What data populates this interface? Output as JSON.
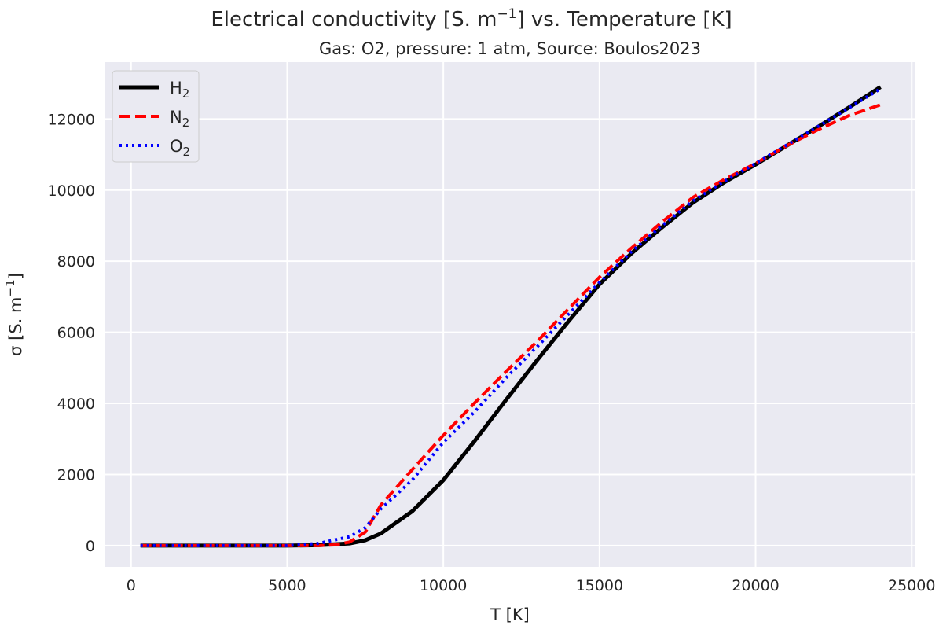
{
  "chart_data": {
    "type": "line",
    "title": "Electrical conductivity [S. m⁻¹] vs. Temperature [K]",
    "title_parts": {
      "pre": "Electrical conductivity [S. m",
      "sup": "−1",
      "post": "] vs. Temperature [K]"
    },
    "subtitle": "Gas: O2, pressure: 1 atm, Source: Boulos2023",
    "xlabel": "T [K]",
    "ylabel_parts": {
      "pre": "σ [S. m",
      "sup": "−1",
      "post": "]"
    },
    "xlim": [
      -850,
      25120
    ],
    "ylim": [
      -600,
      13600
    ],
    "xticks": [
      0,
      5000,
      10000,
      15000,
      20000,
      25000
    ],
    "yticks": [
      0,
      2000,
      4000,
      6000,
      8000,
      10000,
      12000
    ],
    "grid": true,
    "background": "#EAEAF2",
    "legend_placement": "top-left",
    "series": [
      {
        "name": "H2",
        "label_base": "H",
        "label_sub": "2",
        "color": "#000000",
        "style": "solid",
        "x": [
          300,
          5000,
          6000,
          7000,
          7500,
          8000,
          9000,
          10000,
          11000,
          12000,
          13000,
          14000,
          15000,
          16000,
          17000,
          18000,
          19000,
          20000,
          21000,
          22000,
          23000,
          24000
        ],
        "y": [
          0,
          0,
          10,
          60,
          150,
          340,
          960,
          1840,
          2940,
          4090,
          5210,
          6300,
          7350,
          8200,
          8950,
          9650,
          10220,
          10720,
          11250,
          11780,
          12330,
          12900
        ]
      },
      {
        "name": "N2",
        "label_base": "N",
        "label_sub": "2",
        "color": "#FF0000",
        "style": "dashed",
        "x": [
          300,
          5000,
          6000,
          6500,
          7000,
          7500,
          8000,
          9000,
          10000,
          11000,
          12000,
          13000,
          14000,
          15000,
          16000,
          17000,
          18000,
          19000,
          20000,
          21000,
          22000,
          23000,
          24000
        ],
        "y": [
          0,
          0,
          0,
          20,
          100,
          380,
          1140,
          2130,
          3100,
          4010,
          4890,
          5740,
          6650,
          7550,
          8350,
          9100,
          9800,
          10300,
          10750,
          11250,
          11700,
          12100,
          12400
        ]
      },
      {
        "name": "O2",
        "label_base": "O",
        "label_sub": "2",
        "color": "#0000FF",
        "style": "dotted",
        "x": [
          300,
          5000,
          6000,
          7000,
          7500,
          8000,
          9000,
          10000,
          11000,
          12000,
          13000,
          14000,
          15000,
          16000,
          17000,
          18000,
          19000,
          20000,
          21000,
          22000,
          23000,
          24000
        ],
        "y": [
          0,
          0,
          60,
          250,
          500,
          1030,
          1840,
          2900,
          3760,
          4710,
          5590,
          6500,
          7400,
          8250,
          9000,
          9700,
          10250,
          10750,
          11270,
          11790,
          12320,
          12850
        ]
      }
    ]
  }
}
